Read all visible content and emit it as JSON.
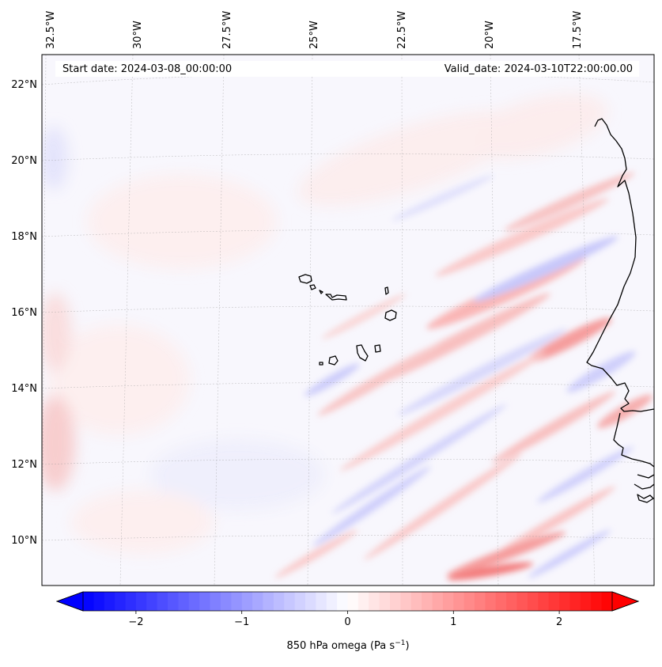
{
  "map": {
    "start_label": "Start date: 2024-03-08_00:00:00",
    "valid_label": "Valid_date: 2024-03-10T22:00:00.00",
    "lon_labels": [
      "32.5°W",
      "30°W",
      "27.5°W",
      "25°W",
      "22.5°W",
      "20°W",
      "17.5°W"
    ],
    "lat_labels": [
      "22°N",
      "20°N",
      "18°N",
      "16°N",
      "14°N",
      "12°N",
      "10°N"
    ],
    "variable": "850 hPa omega",
    "units": "Pa s",
    "units_exponent": "−1"
  },
  "colorbar": {
    "ticks": [
      "−2",
      "−1",
      "0",
      "1",
      "2"
    ],
    "min": -2.5,
    "max": 2.5,
    "tick_values": [
      -2,
      -1,
      0,
      1,
      2
    ],
    "colormap": "bwr",
    "low_color": "#0000ff",
    "mid_color": "#ffffff",
    "high_color": "#ff0000"
  }
}
